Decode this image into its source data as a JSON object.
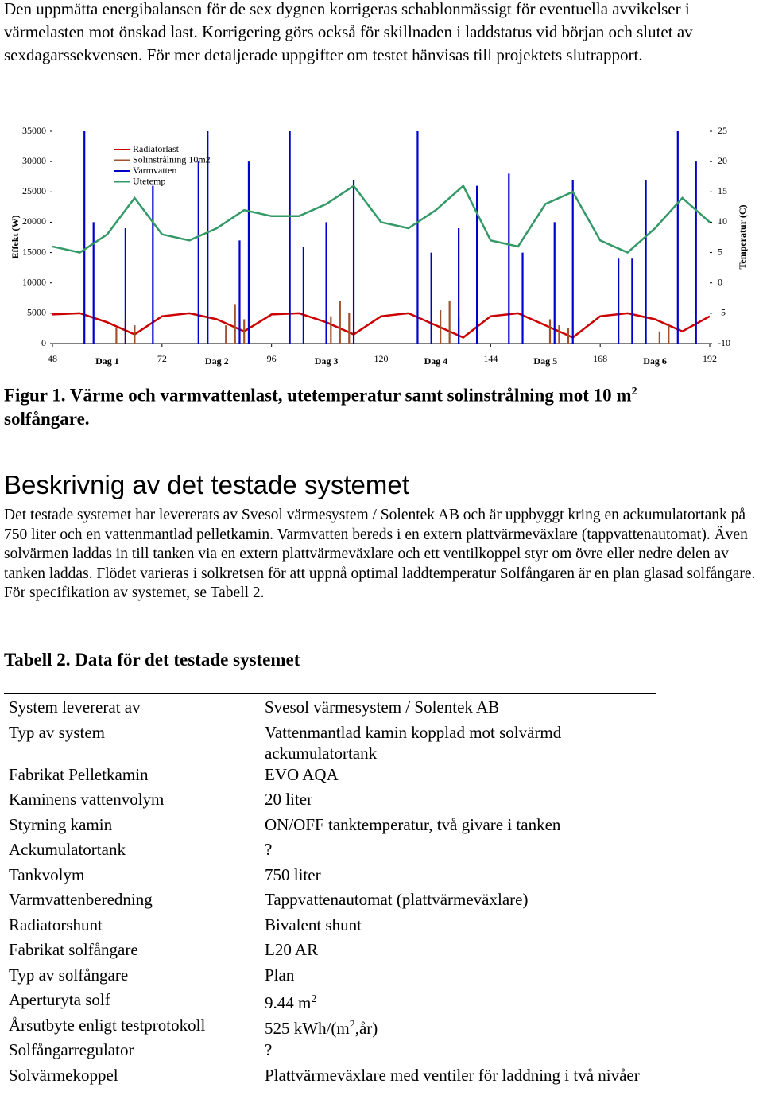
{
  "intro": "Den uppmätta energibalansen för de sex dygnen korrigeras schablonmässigt för eventuella avvikelser i värmelasten mot önskad last. Korrigering görs också för skillnaden i laddstatus vid början och slutet av sexdagarssekvensen. För mer detaljerade uppgifter om testet hänvisas till projektets slutrapport.",
  "chart_data": {
    "type": "line",
    "ylabel": "Effekt (W)",
    "y2label": "Temperatur (C)",
    "xlim": [
      48,
      192
    ],
    "xticks": [
      48,
      72,
      96,
      120,
      144,
      168,
      192
    ],
    "day_labels": [
      "Dag 1",
      "Dag 2",
      "Dag 3",
      "Dag 4",
      "Dag 5",
      "Dag 6"
    ],
    "ylim": [
      0,
      35000
    ],
    "yticks": [
      0,
      5000,
      10000,
      15000,
      20000,
      25000,
      30000,
      35000
    ],
    "y2lim": [
      -10,
      25
    ],
    "y2ticks": [
      -10,
      -5,
      0,
      5,
      10,
      15,
      20,
      25
    ],
    "series": [
      {
        "name": "Radiatorlast",
        "color": "#cc0000",
        "type": "line",
        "x": [
          48,
          54,
          60,
          66,
          72,
          78,
          84,
          90,
          96,
          102,
          108,
          114,
          120,
          126,
          132,
          138,
          144,
          150,
          156,
          162,
          168,
          174,
          180,
          186,
          192
        ],
        "values": [
          4800,
          5000,
          3500,
          1500,
          4500,
          5000,
          4000,
          2000,
          4800,
          5000,
          3500,
          1500,
          4500,
          5000,
          3000,
          1000,
          4500,
          5000,
          3000,
          1000,
          4500,
          5000,
          4000,
          2000,
          4500
        ]
      },
      {
        "name": "Solinstrålning 10m2",
        "color": "#a0522d",
        "type": "bar",
        "x": [
          62,
          64,
          66,
          86,
          88,
          90,
          109,
          111,
          113,
          133,
          135,
          137,
          157,
          159,
          161,
          181,
          183
        ],
        "values": [
          2500,
          4000,
          3000,
          3000,
          6500,
          4000,
          4500,
          7000,
          5000,
          5500,
          7000,
          4500,
          4000,
          3000,
          2500,
          2000,
          3000
        ]
      },
      {
        "name": "Varmvatten",
        "color": "#0000cc",
        "type": "bar",
        "x": [
          55,
          57,
          64,
          70,
          80,
          82,
          89,
          91,
          100,
          103,
          108,
          114,
          128,
          131,
          137,
          141,
          148,
          151,
          158,
          162,
          172,
          175,
          178,
          185,
          189
        ],
        "values": [
          35000,
          20000,
          19000,
          26000,
          30000,
          35000,
          17000,
          30000,
          35000,
          16000,
          20000,
          27000,
          35000,
          15000,
          19000,
          26000,
          28000,
          15000,
          20000,
          27000,
          14000,
          14000,
          27000,
          35000,
          30000
        ]
      },
      {
        "name": "Utetemp",
        "color": "#339966",
        "type": "line",
        "axis": "y2",
        "x": [
          48,
          54,
          60,
          66,
          72,
          78,
          84,
          90,
          96,
          102,
          108,
          114,
          120,
          126,
          132,
          138,
          144,
          150,
          156,
          162,
          168,
          174,
          180,
          186,
          192
        ],
        "values": [
          6,
          5,
          8,
          14,
          8,
          7,
          9,
          12,
          11,
          11,
          13,
          16,
          10,
          9,
          12,
          16,
          7,
          6,
          13,
          15,
          7,
          5,
          9,
          14,
          10
        ]
      }
    ]
  },
  "caption": {
    "text": "Figur 1. Värme och varmvattenlast, utetemperatur samt solinstrålning mot 10 m",
    "sup": "2",
    "tail": " solfångare."
  },
  "heading": "Beskrivnig av det testade systemet",
  "body": "Det testade systemet har levererats av Svesol värmesystem / Solentek AB och är uppbyggt kring en ackumulatortank på 750 liter och en vattenmantlad pelletkamin. Varmvatten bereds i en extern plattvärmeväxlare (tappvattenautomat). Även solvärmen laddas in till tanken via en extern plattvärmeväxlare och ett ventilkoppel styr om övre eller nedre delen av tanken laddas. Flödet varieras i solkretsen för att uppnå optimal laddtemperatur Solfångaren är en plan glasad solfångare. För specifikation av systemet, se Tabell 2.",
  "table": {
    "title": "Tabell 2. Data för det testade systemet",
    "rows": [
      [
        "System levererat av",
        "Svesol värmesystem / Solentek AB"
      ],
      [
        "Typ av system",
        "Vattenmantlad kamin kopplad mot solvärmd ackumulatortank"
      ],
      [
        "Fabrikat Pelletkamin",
        "EVO AQA"
      ],
      [
        "Kaminens vattenvolym",
        "20 liter"
      ],
      [
        "Styrning kamin",
        "ON/OFF tanktemperatur, två givare i tanken"
      ],
      [
        "Ackumulatortank",
        "?"
      ],
      [
        "Tankvolym",
        "750 liter"
      ],
      [
        "Varmvattenberedning",
        "Tappvattenautomat (plattvärmeväxlare)"
      ],
      [
        "Radiatorshunt",
        "Bivalent shunt"
      ],
      [
        "Fabrikat solfångare",
        "L20 AR"
      ],
      [
        "Typ av solfångare",
        "Plan"
      ],
      [
        "Aperturyta solf",
        {
          "text": "9.44 m",
          "sup": "2"
        }
      ],
      [
        "Årsutbyte enligt testprotokoll",
        {
          "text": "525 kWh/(m",
          "sup": "2",
          "tail": ",år)"
        }
      ],
      [
        "Solfångarregulator",
        "?"
      ],
      [
        "Solvärmekoppel",
        "Plattvärmeväxlare med ventiler för laddning i två nivåer"
      ]
    ]
  }
}
